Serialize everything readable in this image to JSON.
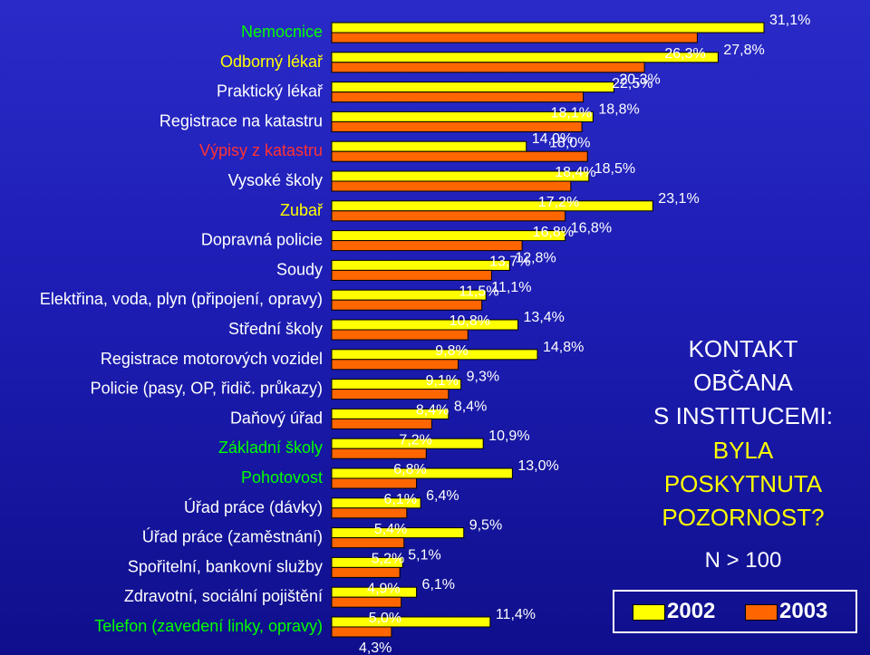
{
  "chart_data": {
    "type": "bar",
    "orientation": "horizontal",
    "categories": [
      "Nemocnice",
      "Odborný lékař",
      "Praktický lékař",
      "Registrace na katastru",
      "Výpisy z katastru",
      "Vysoké školy",
      "Zubař",
      "Dopravná policie",
      "Soudy",
      "Elektřina, voda, plyn (připojení, opravy)",
      "Střední školy",
      "Registrace motorových vozidel",
      "Policie (pasy, OP, řidič. průkazy)",
      "Daňový úřad",
      "Základní školy",
      "Pohotovost",
      "Úřad práce (dávky)",
      "Úřad práce (zaměstnání)",
      "Spořitelní, bankovní služby",
      "Zdravotní, sociální pojištění",
      "Telefon (zavedení linky, opravy)"
    ],
    "category_colors": [
      "#00ff00",
      "#ffff00",
      "#ffffff",
      "#ffffff",
      "#ff3333",
      "#ffffff",
      "#ffff00",
      "#ffffff",
      "#ffffff",
      "#ffffff",
      "#ffffff",
      "#ffffff",
      "#ffffff",
      "#ffffff",
      "#00ff00",
      "#00ff00",
      "#ffffff",
      "#ffffff",
      "#ffffff",
      "#ffffff",
      "#00ff00"
    ],
    "series": [
      {
        "name": "2002",
        "color": "#ffff00",
        "values": [
          31.1,
          27.8,
          20.3,
          18.8,
          14.0,
          18.5,
          23.1,
          16.8,
          12.8,
          11.1,
          13.4,
          14.8,
          9.3,
          8.4,
          10.9,
          13.0,
          6.4,
          9.5,
          5.1,
          6.1,
          11.4
        ],
        "labels": [
          "31,1%",
          "27,8%",
          "20,3%",
          "18,8%",
          "14,0%",
          "18,5%",
          "23,1%",
          "16,8%",
          "12,8%",
          "11,1%",
          "13,4%",
          "14,8%",
          "9,3%",
          "8,4%",
          "10,9%",
          "13,0%",
          "6,4%",
          "9,5%",
          "5,1%",
          "6,1%",
          "11,4%"
        ]
      },
      {
        "name": "2003",
        "color": "#ff6600",
        "values": [
          26.3,
          22.5,
          18.1,
          18.0,
          18.4,
          17.2,
          16.8,
          13.7,
          11.5,
          10.8,
          9.8,
          9.1,
          8.4,
          7.2,
          6.8,
          6.1,
          5.4,
          5.2,
          4.9,
          5.0,
          4.3
        ],
        "labels": [
          "26,3%",
          "22,5%",
          "18,1%",
          "18,0%",
          "18,4%",
          "17,2%",
          "16,8%",
          "13,7%",
          "11,5%",
          "10,8%",
          "9,8%",
          "9,1%",
          "8,4%",
          "7,2%",
          "6,8%",
          "6,1%",
          "5,4%",
          "5,2%",
          "4,9%",
          "5,0%",
          "4,3%"
        ]
      }
    ],
    "xlim": [
      0,
      31.1
    ],
    "legend": {
      "position": "bottom-right",
      "entries": [
        "2002",
        "2003"
      ]
    }
  },
  "info": {
    "line1": "KONTAKT",
    "line2": "OBČANA",
    "line3": "S INSTITUCEMI:",
    "line4": "BYLA",
    "line5": "POSKYTNUTA",
    "line6": "POZORNOST?",
    "sample": "N > 100"
  }
}
